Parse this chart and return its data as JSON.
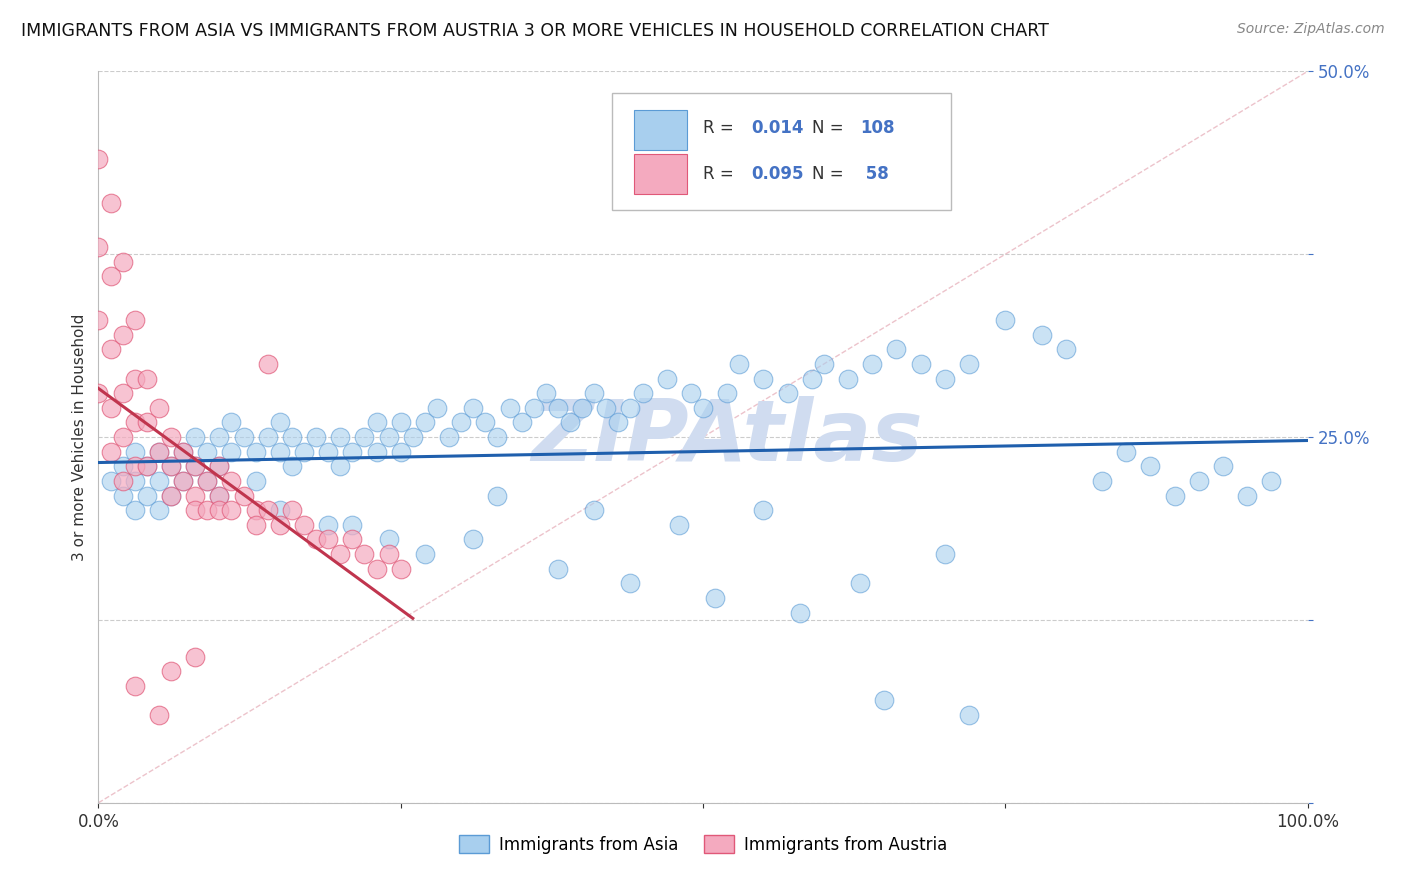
{
  "title": "IMMIGRANTS FROM ASIA VS IMMIGRANTS FROM AUSTRIA 3 OR MORE VEHICLES IN HOUSEHOLD CORRELATION CHART",
  "source": "Source: ZipAtlas.com",
  "ylabel": "3 or more Vehicles in Household",
  "xlim": [
    0.0,
    1.0
  ],
  "ylim": [
    0.0,
    0.5
  ],
  "color_asia": "#A8CFEE",
  "color_asia_edge": "#5B9BD5",
  "color_austria": "#F4AABF",
  "color_austria_edge": "#E05878",
  "color_asia_line": "#1F5FAD",
  "color_austria_line": "#C0354E",
  "color_diag": "#E8B4BE",
  "background_color": "#FFFFFF",
  "grid_color": "#CCCCCC",
  "tick_color": "#4472C4",
  "watermark_color": "#D0DCF0",
  "legend_R_asia": "0.014",
  "legend_N_asia": "108",
  "legend_R_austria": "0.095",
  "legend_N_austria": "58",
  "asia_x": [
    0.01,
    0.02,
    0.02,
    0.03,
    0.03,
    0.03,
    0.04,
    0.04,
    0.05,
    0.05,
    0.05,
    0.06,
    0.06,
    0.07,
    0.07,
    0.08,
    0.08,
    0.09,
    0.09,
    0.1,
    0.1,
    0.1,
    0.11,
    0.11,
    0.12,
    0.13,
    0.13,
    0.14,
    0.15,
    0.15,
    0.16,
    0.16,
    0.17,
    0.18,
    0.19,
    0.2,
    0.2,
    0.21,
    0.22,
    0.23,
    0.23,
    0.24,
    0.25,
    0.25,
    0.26,
    0.27,
    0.28,
    0.29,
    0.3,
    0.31,
    0.32,
    0.33,
    0.34,
    0.35,
    0.36,
    0.37,
    0.38,
    0.39,
    0.4,
    0.41,
    0.42,
    0.43,
    0.44,
    0.45,
    0.47,
    0.49,
    0.5,
    0.52,
    0.53,
    0.55,
    0.57,
    0.59,
    0.6,
    0.62,
    0.64,
    0.66,
    0.68,
    0.7,
    0.72,
    0.75,
    0.78,
    0.8,
    0.83,
    0.85,
    0.87,
    0.89,
    0.91,
    0.93,
    0.95,
    0.97,
    0.21,
    0.24,
    0.27,
    0.31,
    0.38,
    0.44,
    0.51,
    0.58,
    0.65,
    0.72,
    0.15,
    0.19,
    0.33,
    0.41,
    0.48,
    0.55,
    0.63,
    0.7
  ],
  "asia_y": [
    0.22,
    0.23,
    0.21,
    0.24,
    0.22,
    0.2,
    0.23,
    0.21,
    0.24,
    0.22,
    0.2,
    0.23,
    0.21,
    0.24,
    0.22,
    0.25,
    0.23,
    0.24,
    0.22,
    0.25,
    0.23,
    0.21,
    0.26,
    0.24,
    0.25,
    0.24,
    0.22,
    0.25,
    0.26,
    0.24,
    0.25,
    0.23,
    0.24,
    0.25,
    0.24,
    0.23,
    0.25,
    0.24,
    0.25,
    0.26,
    0.24,
    0.25,
    0.26,
    0.24,
    0.25,
    0.26,
    0.27,
    0.25,
    0.26,
    0.27,
    0.26,
    0.25,
    0.27,
    0.26,
    0.27,
    0.28,
    0.27,
    0.26,
    0.27,
    0.28,
    0.27,
    0.26,
    0.27,
    0.28,
    0.29,
    0.28,
    0.27,
    0.28,
    0.3,
    0.29,
    0.28,
    0.29,
    0.3,
    0.29,
    0.3,
    0.31,
    0.3,
    0.29,
    0.3,
    0.33,
    0.32,
    0.31,
    0.22,
    0.24,
    0.23,
    0.21,
    0.22,
    0.23,
    0.21,
    0.22,
    0.19,
    0.18,
    0.17,
    0.18,
    0.16,
    0.15,
    0.14,
    0.13,
    0.07,
    0.06,
    0.2,
    0.19,
    0.21,
    0.2,
    0.19,
    0.2,
    0.15,
    0.17
  ],
  "austria_x": [
    0.0,
    0.0,
    0.0,
    0.0,
    0.01,
    0.01,
    0.01,
    0.01,
    0.01,
    0.02,
    0.02,
    0.02,
    0.02,
    0.02,
    0.03,
    0.03,
    0.03,
    0.03,
    0.04,
    0.04,
    0.04,
    0.05,
    0.05,
    0.06,
    0.06,
    0.06,
    0.07,
    0.07,
    0.08,
    0.08,
    0.08,
    0.09,
    0.09,
    0.1,
    0.1,
    0.1,
    0.11,
    0.11,
    0.12,
    0.13,
    0.13,
    0.14,
    0.15,
    0.16,
    0.17,
    0.18,
    0.19,
    0.2,
    0.21,
    0.22,
    0.23,
    0.24,
    0.25,
    0.14,
    0.08,
    0.03,
    0.05,
    0.06
  ],
  "austria_y": [
    0.44,
    0.38,
    0.33,
    0.28,
    0.41,
    0.36,
    0.31,
    0.27,
    0.24,
    0.37,
    0.32,
    0.28,
    0.25,
    0.22,
    0.33,
    0.29,
    0.26,
    0.23,
    0.29,
    0.26,
    0.23,
    0.27,
    0.24,
    0.25,
    0.23,
    0.21,
    0.24,
    0.22,
    0.23,
    0.21,
    0.2,
    0.22,
    0.2,
    0.23,
    0.21,
    0.2,
    0.22,
    0.2,
    0.21,
    0.2,
    0.19,
    0.2,
    0.19,
    0.2,
    0.19,
    0.18,
    0.18,
    0.17,
    0.18,
    0.17,
    0.16,
    0.17,
    0.16,
    0.3,
    0.1,
    0.08,
    0.06,
    0.09
  ]
}
